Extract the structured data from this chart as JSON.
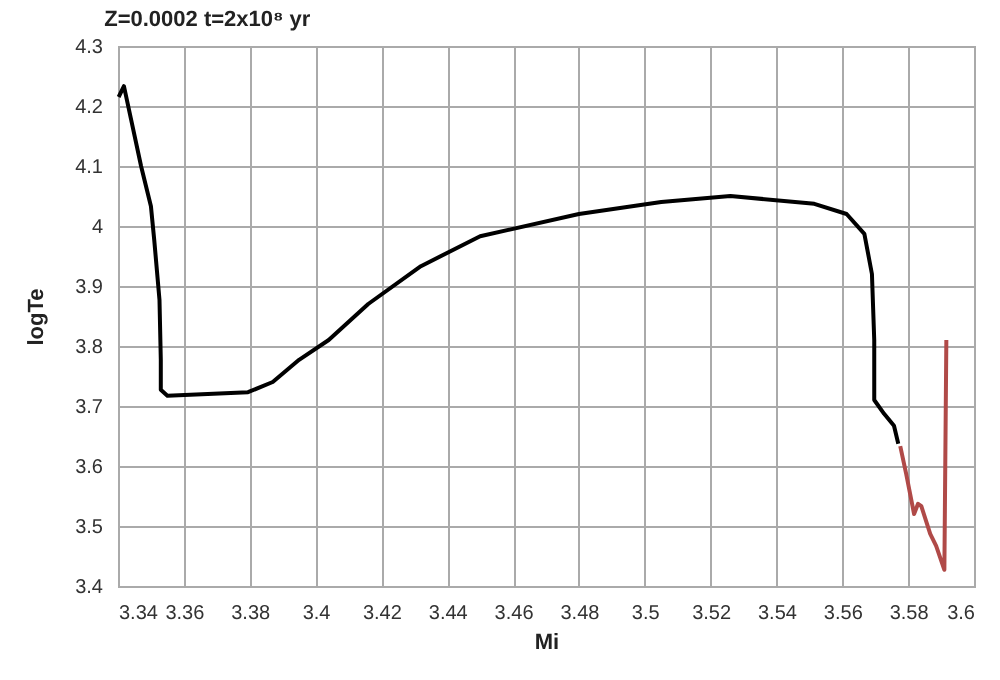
{
  "chart_data": {
    "type": "line",
    "title": "Z=0.0002    t=2x10⁸ yr",
    "xlabel": "Mi",
    "ylabel": "logTe",
    "xlim": [
      3.34,
      3.6
    ],
    "xticks": [
      3.34,
      3.36,
      3.38,
      3.4,
      3.42,
      3.44,
      3.46,
      3.48,
      3.5,
      3.52,
      3.54,
      3.56,
      3.58,
      3.6
    ],
    "ylim": [
      3.4,
      4.3
    ],
    "yticks": [
      3.4,
      3.5,
      3.6,
      3.7,
      3.8,
      3.9,
      4,
      4.1,
      4.2,
      4.3
    ],
    "grid": true,
    "legend": false,
    "marker": "none",
    "line_style": "solid",
    "series": [
      {
        "color": "#000000",
        "x": [
          3.3402,
          3.3418,
          3.344,
          3.347,
          3.35,
          3.351,
          3.3526,
          3.353,
          3.353,
          3.355,
          3.3795,
          3.387,
          3.395,
          3.404,
          3.416,
          3.432,
          3.45,
          3.48,
          3.505,
          3.526,
          3.5515,
          3.5613,
          3.5667,
          3.569,
          3.5697,
          3.5697,
          3.5697,
          3.5727,
          3.5757,
          3.577
        ],
        "values": [
          4.215,
          4.233,
          4.177,
          4.1,
          4.033,
          3.977,
          3.877,
          3.777,
          3.727,
          3.717,
          3.723,
          3.74,
          3.777,
          3.81,
          3.87,
          3.933,
          3.983,
          4.02,
          4.04,
          4.05,
          4.037,
          4.02,
          3.987,
          3.92,
          3.81,
          3.777,
          3.71,
          3.687,
          3.667,
          3.637
        ]
      },
      {
        "color": "#b04a48",
        "x": [
          3.5776,
          3.5794,
          3.5818,
          3.583,
          3.584,
          3.5867,
          3.5885,
          3.591,
          3.5916
        ],
        "values": [
          3.633,
          3.587,
          3.52,
          3.537,
          3.533,
          3.487,
          3.467,
          3.427,
          3.81
        ]
      }
    ]
  }
}
